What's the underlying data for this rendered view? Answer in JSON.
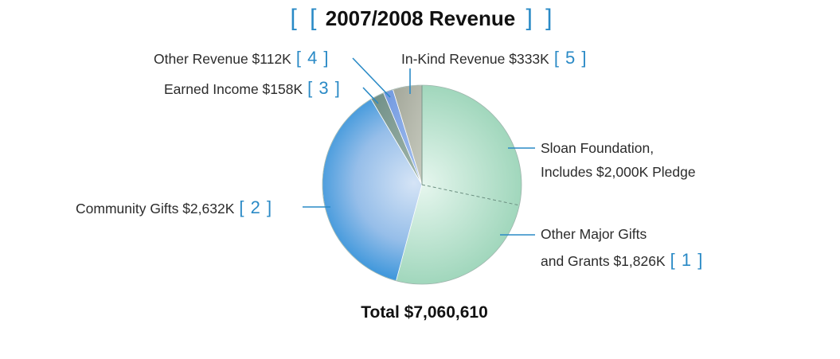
{
  "chart_data": {
    "type": "pie",
    "title": "2007/2008 Revenue",
    "title_bracket_left": "[ [",
    "title_bracket_right": "] ]",
    "total_label": "Total $7,060,610",
    "slices": [
      {
        "key": "sloan",
        "label_lines": [
          "Sloan Foundation,",
          "Includes $2,000K Pledge"
        ],
        "number": "",
        "value": 2000,
        "color": "#a6d9bf"
      },
      {
        "key": "major",
        "label_lines": [
          "Other Major Gifts",
          "and Grants $1,826K"
        ],
        "number": "[ 1 ]",
        "value": 1826,
        "color": "#b2dfc8"
      },
      {
        "key": "community",
        "label_lines": [
          "Community Gifts $2,632K"
        ],
        "number": "[ 2 ]",
        "value": 2632,
        "color": "#4a9ee0"
      },
      {
        "key": "earned",
        "label_lines": [
          "Earned Income $158K"
        ],
        "number": "[ 3 ]",
        "value": 158,
        "color": "#7f9c92"
      },
      {
        "key": "other",
        "label_lines": [
          "Other Revenue $112K"
        ],
        "number": "[ 4 ]",
        "value": 112,
        "color": "#86a8e6"
      },
      {
        "key": "inkind",
        "label_lines": [
          "In-Kind Revenue $333K"
        ],
        "number": "[ 5 ]",
        "value": 333,
        "color": "#b2b4a8"
      }
    ],
    "colors": {
      "accent": "#2a8ac6",
      "leader": "#2a8ac6"
    }
  }
}
